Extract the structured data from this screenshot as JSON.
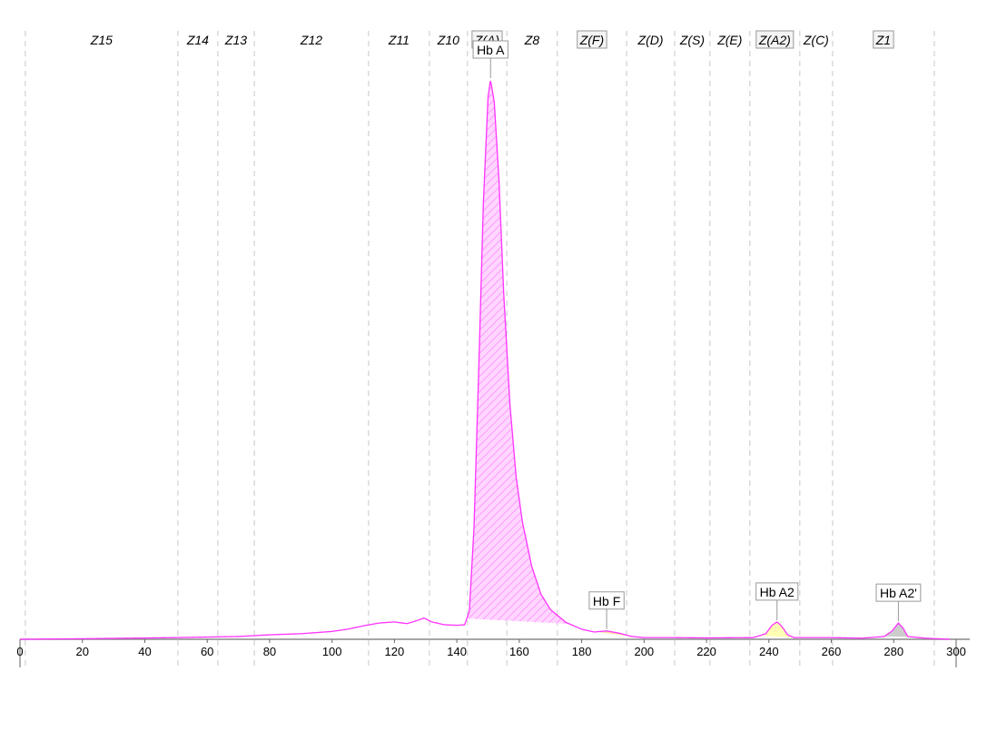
{
  "chart_data": {
    "type": "area",
    "title": "",
    "xlabel": "",
    "ylabel": "",
    "xlim": [
      0,
      300
    ],
    "ylim": [
      0,
      100
    ],
    "grid": false,
    "x_ticks": [
      0,
      20,
      40,
      60,
      80,
      100,
      120,
      140,
      160,
      180,
      200,
      220,
      240,
      260,
      280,
      300
    ],
    "colors": {
      "curve": "#ff33ff",
      "hb_a_fill": "#ffb3ff",
      "hb_f_fill": "#ffcc88",
      "hb_a2_fill": "#ffff99",
      "hb_a2p_fill": "#bbbbbb",
      "zone_line": "#c8c8c8"
    },
    "zones": [
      {
        "label": "Z15",
        "from": 1.7,
        "to": 50.6,
        "boxed": false
      },
      {
        "label": "Z14",
        "from": 50.6,
        "to": 63.4,
        "boxed": false
      },
      {
        "label": "Z13",
        "from": 63.4,
        "to": 75.1,
        "boxed": false
      },
      {
        "label": "Z12",
        "from": 75.1,
        "to": 111.7,
        "boxed": false
      },
      {
        "label": "Z11",
        "from": 111.7,
        "to": 131.2,
        "boxed": false
      },
      {
        "label": "Z10",
        "from": 131.2,
        "to": 143.4,
        "boxed": false
      },
      {
        "label": "Z(A)",
        "from": 143.4,
        "to": 156,
        "boxed": true
      },
      {
        "label": "Z8",
        "from": 156,
        "to": 172.2,
        "boxed": false
      },
      {
        "label": "Z(F)",
        "from": 172.2,
        "to": 194.4,
        "boxed": true
      },
      {
        "label": "Z(D)",
        "from": 194.4,
        "to": 209.8,
        "boxed": false
      },
      {
        "label": "Z(S)",
        "from": 209.8,
        "to": 221.1,
        "boxed": false
      },
      {
        "label": "Z(E)",
        "from": 221.1,
        "to": 233.9,
        "boxed": false
      },
      {
        "label": "Z(A2)",
        "from": 233.9,
        "to": 249.9,
        "boxed": true
      },
      {
        "label": "Z(C)",
        "from": 249.9,
        "to": 260.4,
        "boxed": false
      },
      {
        "label": "Z1",
        "from": 260.4,
        "to": 293,
        "boxed": true
      }
    ],
    "curve": {
      "x": [
        0,
        20,
        50,
        70,
        80,
        90,
        100,
        105,
        110,
        115,
        120,
        124,
        127,
        129.5,
        132,
        136,
        140,
        142.5,
        144,
        145.5,
        147,
        148.5,
        150,
        150.8,
        152,
        153.5,
        155,
        157,
        159,
        161,
        164,
        167,
        170,
        175,
        180,
        184,
        188,
        192,
        196,
        200,
        210,
        220,
        235,
        239,
        241,
        242.6,
        244,
        246,
        248,
        260,
        270,
        277,
        279.5,
        281.5,
        283,
        284.5,
        290,
        298
      ],
      "y": [
        0,
        0.1,
        0.3,
        0.5,
        0.8,
        1.0,
        1.4,
        1.8,
        2.4,
        2.9,
        3.1,
        2.8,
        3.3,
        3.8,
        3.1,
        2.6,
        2.5,
        2.6,
        5,
        20,
        48,
        78,
        97,
        100,
        96,
        82,
        62,
        42,
        29,
        21,
        13,
        8,
        5.3,
        3,
        1.8,
        1.3,
        1.5,
        1.1,
        0.5,
        0.3,
        0.3,
        0.25,
        0.3,
        1.0,
        2.5,
        3.1,
        2.4,
        0.8,
        0.3,
        0.3,
        0.2,
        0.5,
        1.5,
        2.9,
        2.0,
        0.5,
        0.2,
        0
      ]
    },
    "peaks": [
      {
        "label": "Hb A",
        "x": 150.8,
        "y": 100,
        "from": 143.2,
        "to": 176
      },
      {
        "label": "Hb F",
        "x": 188,
        "y": 1.5,
        "from": 182,
        "to": 196
      },
      {
        "label": "Hb A2",
        "x": 242.6,
        "y": 3.1,
        "from": 237,
        "to": 248
      },
      {
        "label": "Hb A2'",
        "x": 281.5,
        "y": 2.9,
        "from": 277,
        "to": 285
      }
    ]
  }
}
